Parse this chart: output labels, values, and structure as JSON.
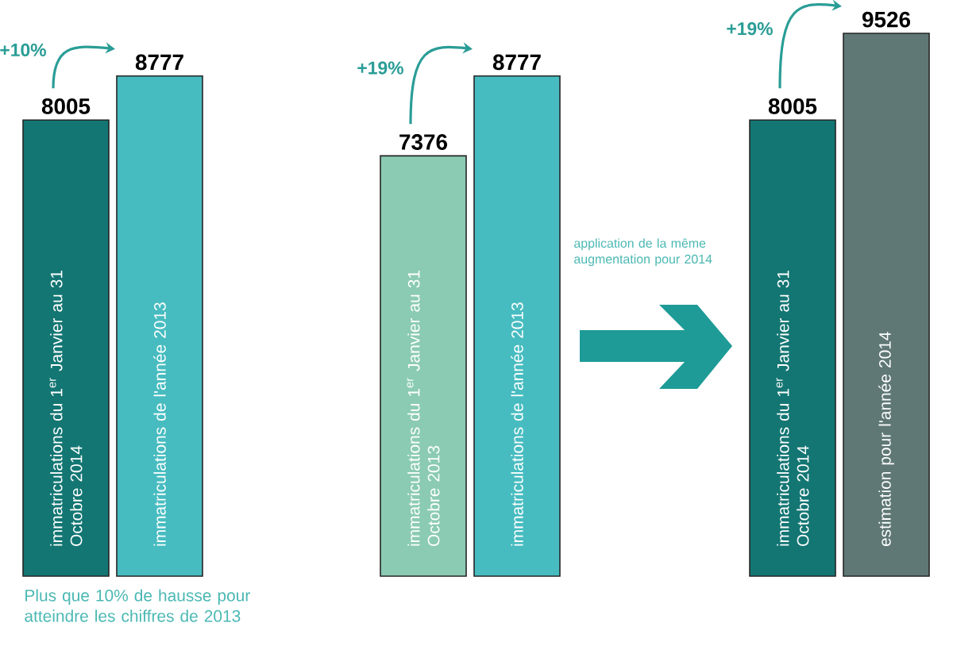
{
  "chart_data": [
    {
      "type": "bar",
      "categories": [
        "immatriculations du 1$^{er}$ Janvier au 31 Octobre 2014",
        "immatriculations de l'année 2013"
      ],
      "values": [
        8005,
        8777
      ],
      "colors": [
        "#137673",
        "#47bcc0"
      ],
      "data_labels": true,
      "annotations": [
        "+10%",
        "Plus que 10% de hausse pour atteindre les chiffres de 2013"
      ]
    },
    {
      "type": "bar",
      "categories": [
        "immatriculations du 1$^{er}$ Janvier au 31 Octobre 2013",
        "immatriculations de l'année 2013"
      ],
      "values": [
        7376,
        8777
      ],
      "colors": [
        "#8bcbb3",
        "#47bcc0"
      ],
      "data_labels": true,
      "annotations": [
        "+19%",
        "application de la même augmentation pour 2014"
      ]
    },
    {
      "type": "bar",
      "categories": [
        "immatriculations du 1$^{er}$ Janvier au 31 Octobre 2014",
        "estimation pour l'année 2014"
      ],
      "values": [
        8005,
        9526
      ],
      "colors": [
        "#137673",
        "#5f7876"
      ],
      "data_labels": true,
      "annotations": [
        "+19%"
      ]
    }
  ]
}
